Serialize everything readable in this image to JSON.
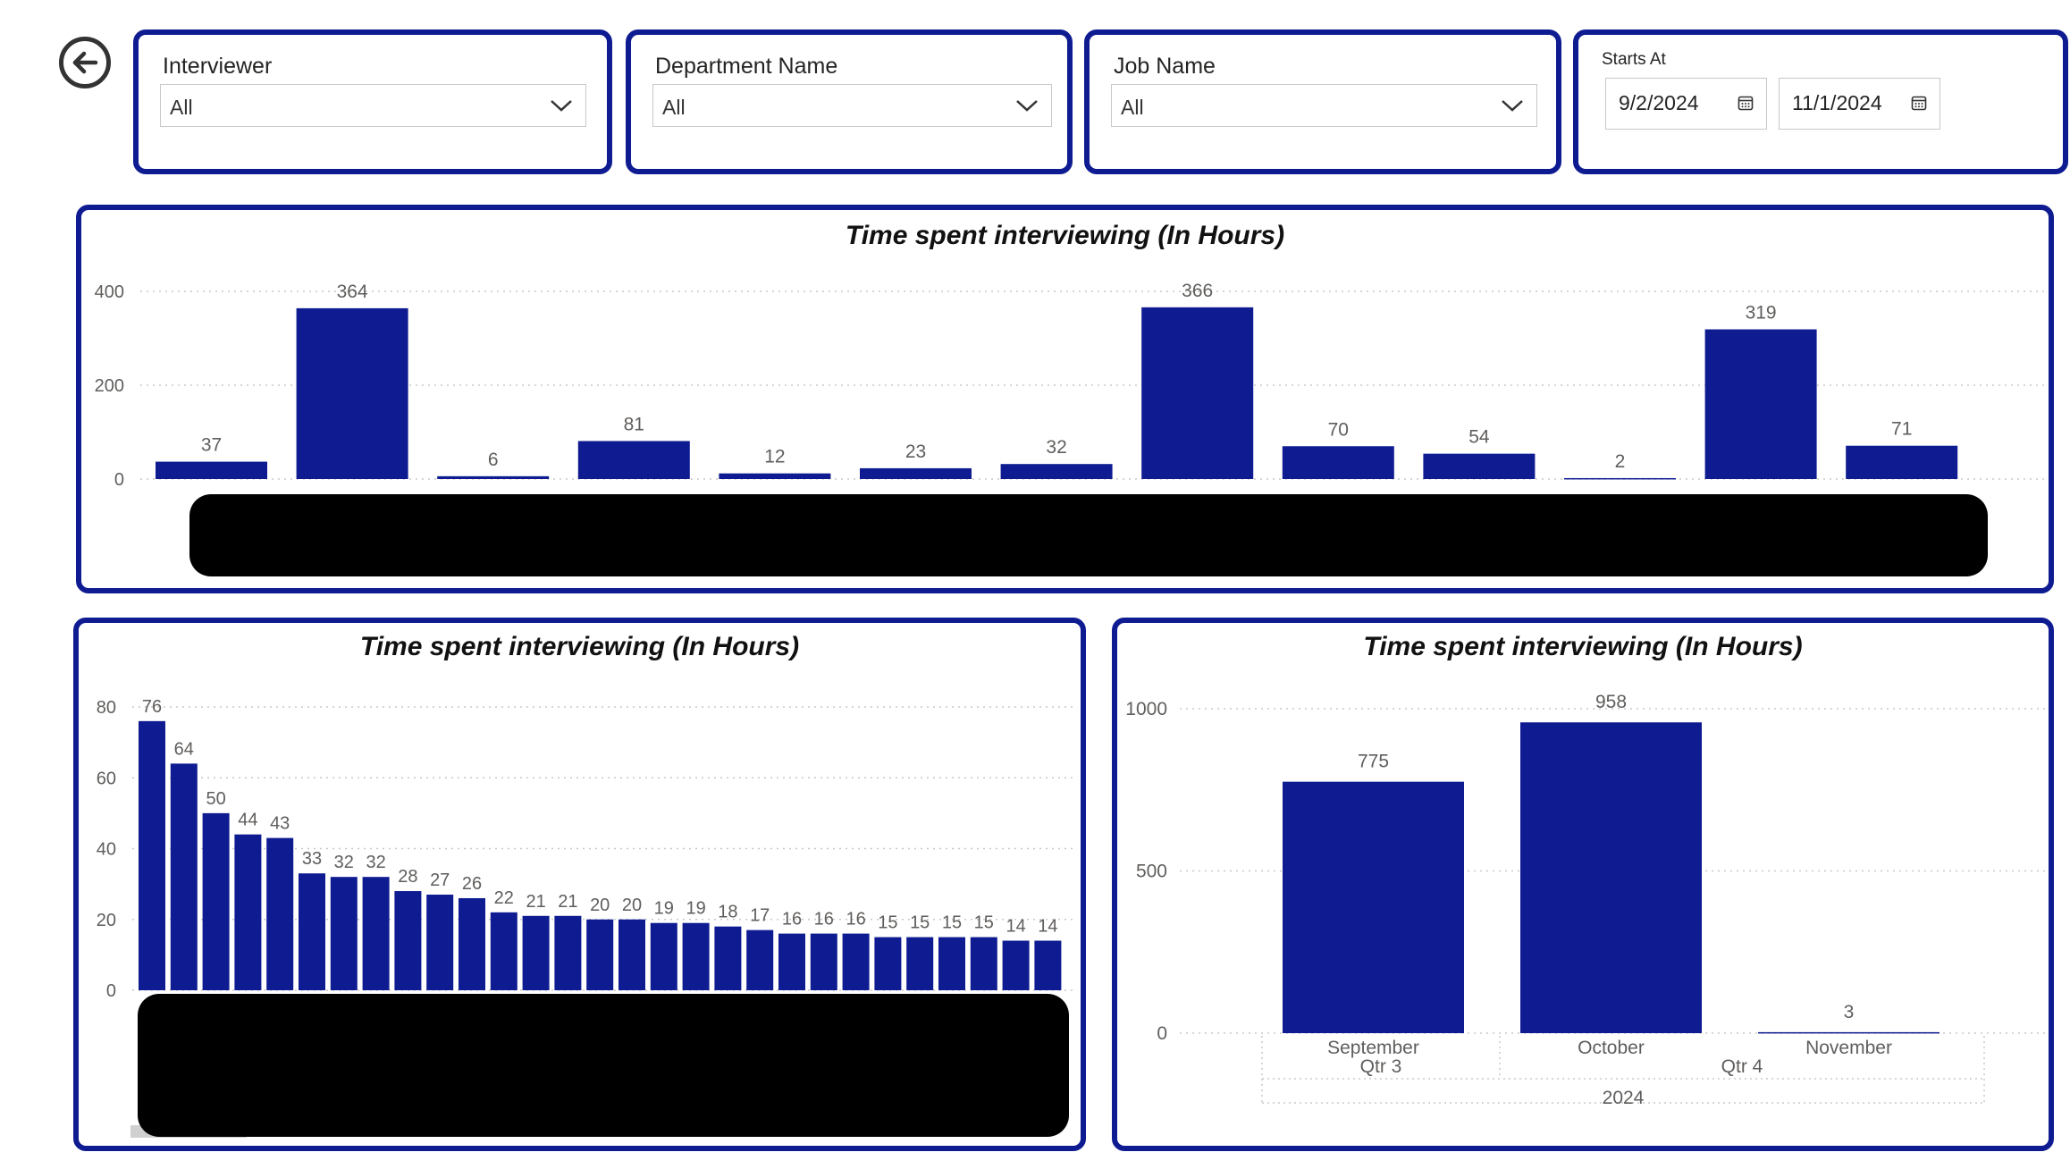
{
  "filters": {
    "interviewer": {
      "label": "Interviewer",
      "value": "All"
    },
    "department": {
      "label": "Department Name",
      "value": "All"
    },
    "job": {
      "label": "Job Name",
      "value": "All"
    },
    "starts_at": {
      "label": "Starts At",
      "from": "9/2/2024",
      "to": "11/1/2024"
    }
  },
  "icons": {
    "back": "back-arrow-circle-icon",
    "dropdown": "chevron-down-icon",
    "date": "calendar-icon"
  },
  "colors": {
    "accent": "#0F1C91",
    "bar": "#0F1C91",
    "redaction": "#000000"
  },
  "chart_data": [
    {
      "type": "bar",
      "title": "Time spent interviewing (In Hours)",
      "categories": [
        "",
        "",
        "",
        "",
        "",
        "",
        "",
        "",
        "",
        "",
        "",
        "",
        ""
      ],
      "values": [
        37,
        364,
        6,
        81,
        12,
        23,
        32,
        366,
        70,
        54,
        2,
        319,
        71
      ],
      "ylim": [
        0,
        400
      ],
      "yticks": [
        0,
        200,
        400
      ],
      "data_labels": true,
      "grid": true,
      "note": "category labels redacted"
    },
    {
      "type": "bar",
      "title": "Time spent interviewing (In Hours)",
      "categories": [
        "",
        "",
        "",
        "",
        "",
        "",
        "",
        "",
        "",
        "",
        "",
        "",
        "",
        "",
        "",
        "",
        "",
        "",
        "",
        "",
        "",
        "",
        "",
        "",
        "",
        "",
        "",
        "",
        ""
      ],
      "values": [
        76,
        64,
        50,
        44,
        43,
        33,
        32,
        32,
        28,
        27,
        26,
        22,
        21,
        21,
        20,
        20,
        19,
        19,
        18,
        17,
        16,
        16,
        16,
        15,
        15,
        15,
        15,
        14,
        14
      ],
      "ylim": [
        0,
        80
      ],
      "yticks": [
        0,
        20,
        40,
        60,
        80
      ],
      "data_labels": true,
      "grid": true,
      "note": "category labels redacted"
    },
    {
      "type": "bar",
      "title": "Time spent interviewing (In Hours)",
      "categories": [
        "September",
        "October",
        "November"
      ],
      "values": [
        775,
        958,
        3
      ],
      "quarters": [
        {
          "label": "Qtr 3",
          "span": 1
        },
        {
          "label": "Qtr 4",
          "span": 2
        }
      ],
      "year": "2024",
      "ylim": [
        0,
        1000
      ],
      "yticks": [
        0,
        500,
        1000
      ],
      "data_labels": true,
      "grid": true
    }
  ]
}
